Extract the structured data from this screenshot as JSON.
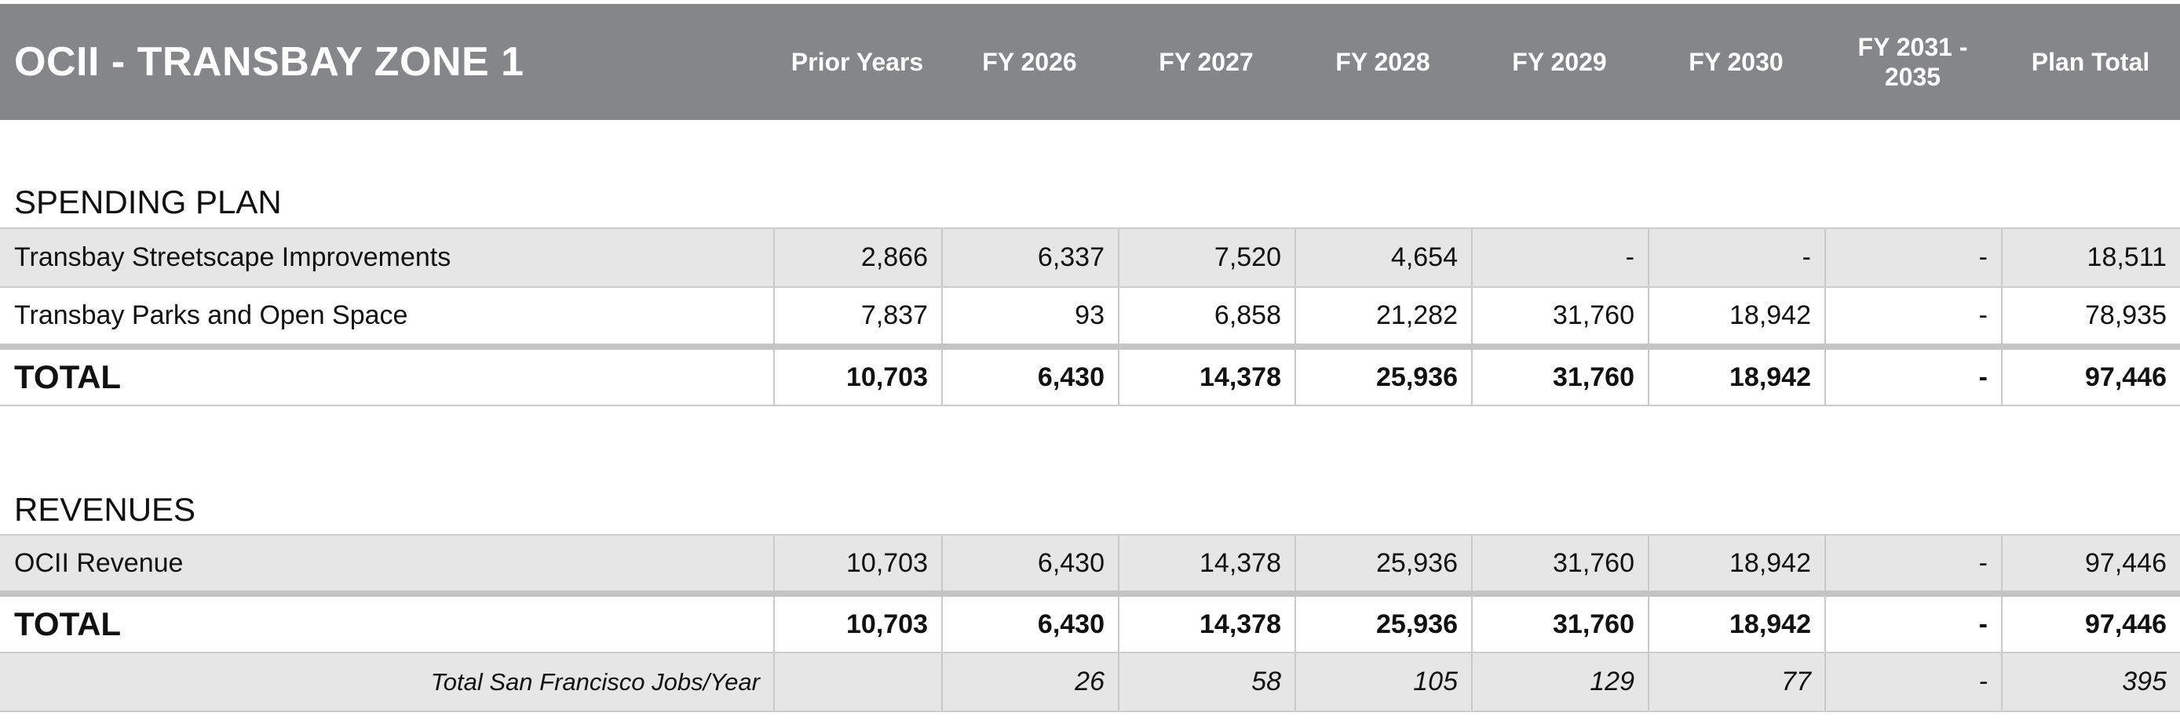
{
  "table": {
    "title": "OCII - TRANSBAY ZONE 1",
    "columns": [
      "Prior Years",
      "FY 2026",
      "FY 2027",
      "FY 2028",
      "FY 2029",
      "FY 2030",
      "FY 2031 -\n2035",
      "Plan Total"
    ]
  },
  "spending": {
    "heading": "SPENDING PLAN",
    "rows": [
      {
        "label": "Transbay Streetscape Improvements",
        "values": [
          "2,866",
          "6,337",
          "7,520",
          "4,654",
          "-",
          "-",
          "-",
          "18,511"
        ]
      },
      {
        "label": "Transbay Parks and Open Space",
        "values": [
          "7,837",
          "93",
          "6,858",
          "21,282",
          "31,760",
          "18,942",
          "-",
          "78,935"
        ]
      }
    ],
    "total": {
      "label": "TOTAL",
      "values": [
        "10,703",
        "6,430",
        "14,378",
        "25,936",
        "31,760",
        "18,942",
        "-",
        "97,446"
      ]
    }
  },
  "revenues": {
    "heading": "REVENUES",
    "rows": [
      {
        "label": "OCII Revenue",
        "values": [
          "10,703",
          "6,430",
          "14,378",
          "25,936",
          "31,760",
          "18,942",
          "-",
          "97,446"
        ]
      }
    ],
    "total": {
      "label": "TOTAL",
      "values": [
        "10,703",
        "6,430",
        "14,378",
        "25,936",
        "31,760",
        "18,942",
        "-",
        "97,446"
      ]
    },
    "jobs": {
      "label": "Total San Francisco Jobs/Year",
      "values": [
        "",
        "26",
        "58",
        "105",
        "129",
        "77",
        "-",
        "395"
      ]
    }
  }
}
